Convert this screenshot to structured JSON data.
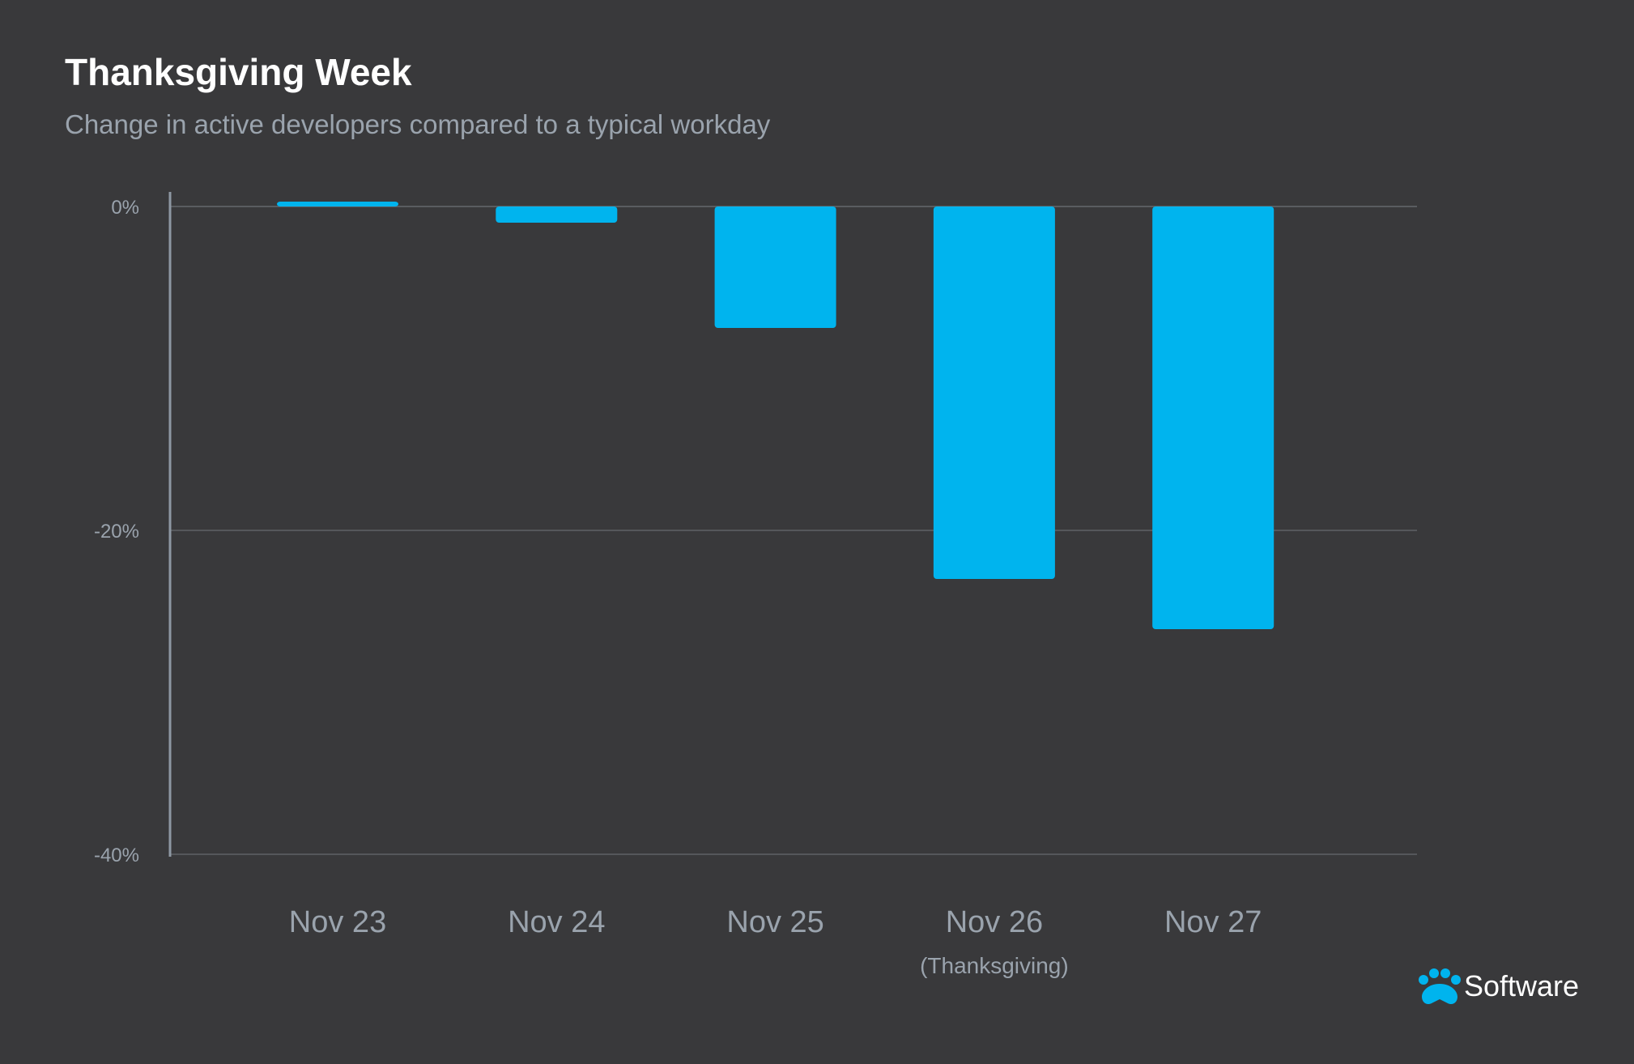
{
  "chart_data": {
    "type": "bar",
    "title": "Thanksgiving Week",
    "subtitle": "Change in active developers compared to a typical workday",
    "xlabel": "",
    "ylabel": "",
    "categories": [
      "Nov 23",
      "Nov 24",
      "Nov 25",
      "Nov 26",
      "Nov 27"
    ],
    "category_notes": [
      "",
      "",
      "",
      "(Thanksgiving)",
      ""
    ],
    "values": [
      0.3,
      -1.0,
      -7.5,
      -23.0,
      -26.1
    ],
    "unit": "%",
    "ylim": [
      -40,
      0
    ],
    "yticks": [
      0,
      -20,
      -40
    ],
    "ytick_labels": [
      "0%",
      "-20%",
      "-40%"
    ],
    "grid": true,
    "legend": "none",
    "bar_color": "#00b4ee"
  },
  "branding": {
    "logo_text": "Software",
    "logo_icon": "paw-icon",
    "logo_color": "#00b4ee"
  }
}
